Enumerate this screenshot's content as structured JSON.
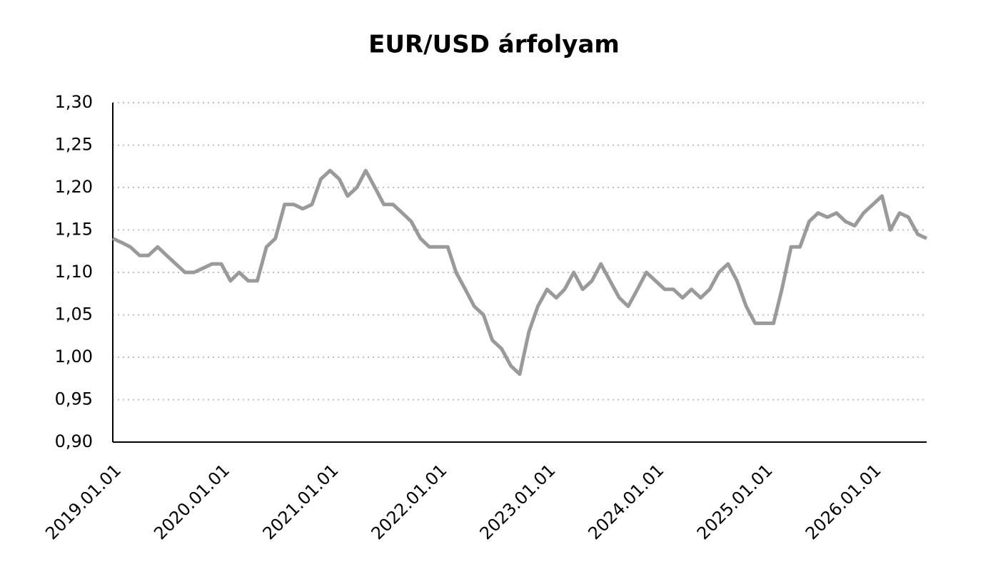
{
  "chart_data": {
    "type": "line",
    "title": "EUR/USD árfolyam",
    "x": [
      "2019.01.01",
      "2019.02.01",
      "2019.03.01",
      "2019.04.01",
      "2019.05.01",
      "2019.06.01",
      "2019.07.01",
      "2019.08.01",
      "2019.09.01",
      "2019.10.01",
      "2019.11.01",
      "2019.12.01",
      "2020.01.01",
      "2020.02.01",
      "2020.03.01",
      "2020.04.01",
      "2020.05.01",
      "2020.06.01",
      "2020.07.01",
      "2020.08.01",
      "2020.09.01",
      "2020.10.01",
      "2020.11.01",
      "2020.12.01",
      "2021.01.01",
      "2021.02.01",
      "2021.03.01",
      "2021.04.01",
      "2021.05.01",
      "2021.06.01",
      "2021.07.01",
      "2021.08.01",
      "2021.09.01",
      "2021.10.01",
      "2021.11.01",
      "2021.12.01",
      "2022.01.01",
      "2022.02.01",
      "2022.03.01",
      "2022.04.01",
      "2022.05.01",
      "2022.06.01",
      "2022.07.01",
      "2022.08.01",
      "2022.09.01",
      "2022.10.01",
      "2022.11.01",
      "2022.12.01",
      "2023.01.01",
      "2023.02.01",
      "2023.03.01",
      "2023.04.01",
      "2023.05.01",
      "2023.06.01",
      "2023.07.01",
      "2023.08.01",
      "2023.09.01",
      "2023.10.01",
      "2023.11.01",
      "2023.12.01",
      "2024.01.01",
      "2024.02.01",
      "2024.03.01",
      "2024.04.01",
      "2024.05.01",
      "2024.06.01",
      "2024.07.01",
      "2024.08.01",
      "2024.09.01",
      "2024.10.01",
      "2024.11.01",
      "2024.12.01",
      "2025.01.01",
      "2025.02.01",
      "2025.03.01",
      "2025.04.01",
      "2025.05.01",
      "2025.06.01",
      "2025.07.01",
      "2025.08.01",
      "2025.09.01",
      "2025.10.01",
      "2025.11.01",
      "2025.12.01",
      "2026.01.01",
      "2026.02.01",
      "2026.03.01",
      "2026.04.01",
      "2026.05.01",
      "2026.06.01",
      "2026.07.01"
    ],
    "series": [
      {
        "name": "EUR/USD",
        "color": "#9a9a9a",
        "values": [
          1.14,
          1.135,
          1.13,
          1.12,
          1.12,
          1.13,
          1.12,
          1.11,
          1.1,
          1.1,
          1.105,
          1.11,
          1.11,
          1.09,
          1.1,
          1.09,
          1.09,
          1.13,
          1.14,
          1.18,
          1.18,
          1.175,
          1.18,
          1.21,
          1.22,
          1.21,
          1.19,
          1.2,
          1.22,
          1.2,
          1.18,
          1.18,
          1.17,
          1.16,
          1.14,
          1.13,
          1.13,
          1.13,
          1.1,
          1.08,
          1.06,
          1.05,
          1.02,
          1.01,
          0.99,
          0.98,
          1.03,
          1.06,
          1.08,
          1.07,
          1.08,
          1.1,
          1.08,
          1.09,
          1.11,
          1.09,
          1.07,
          1.06,
          1.08,
          1.1,
          1.09,
          1.08,
          1.08,
          1.07,
          1.08,
          1.07,
          1.08,
          1.1,
          1.11,
          1.09,
          1.06,
          1.04,
          1.04,
          1.04,
          1.08,
          1.13,
          1.13,
          1.16,
          1.17,
          1.165,
          1.17,
          1.16,
          1.155,
          1.17,
          1.18,
          1.19,
          1.15,
          1.17,
          1.165,
          1.145,
          1.14
        ]
      }
    ],
    "xlim": [
      "2019.01.01",
      "2026.07.01"
    ],
    "xticks": [
      "2019.01.01",
      "2020.01.01",
      "2021.01.01",
      "2022.01.01",
      "2023.01.01",
      "2024.01.01",
      "2025.01.01",
      "2026.01.01"
    ],
    "ylim": [
      0.9,
      1.3
    ],
    "yticks": [
      {
        "value": 0.9,
        "label": "0,90"
      },
      {
        "value": 0.95,
        "label": "0,95"
      },
      {
        "value": 1.0,
        "label": "1,00"
      },
      {
        "value": 1.05,
        "label": "1,05"
      },
      {
        "value": 1.1,
        "label": "1,10"
      },
      {
        "value": 1.15,
        "label": "1,15"
      },
      {
        "value": 1.2,
        "label": "1,20"
      },
      {
        "value": 1.25,
        "label": "1,25"
      },
      {
        "value": 1.3,
        "label": "1,30"
      }
    ],
    "grid": true
  }
}
